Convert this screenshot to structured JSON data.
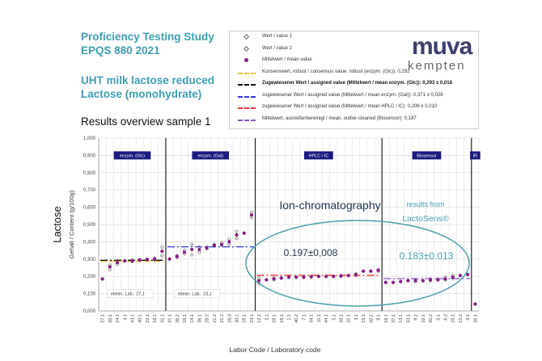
{
  "header": {
    "title_line1": "Proficiency Testing Study",
    "title_line2": "EPQS 880 2021",
    "title_line3": "UHT milk lactose reduced",
    "title_line4": "Lactose (monohydrate)",
    "subtitle": "Results overview sample 1"
  },
  "logo": {
    "top": "muva",
    "bottom": "kempten"
  },
  "legend": {
    "items": [
      {
        "label": "Wert / value 1",
        "color": "#666666",
        "marker": "open-diamond"
      },
      {
        "label": "Wert / value 2",
        "color": "#666666",
        "marker": "open-diamond"
      },
      {
        "label": "Mittelwert / mean value",
        "color": "#8b1a8b",
        "marker": "dot"
      },
      {
        "label": "Konsenswert, robust / consensus value, robust (enzym. (Glc)): 0,292",
        "color": "#f5c242",
        "style": "dash"
      },
      {
        "label": "Zugewiesener Wert / assigned value (Mittelwert / mean enzym. (Glc)): 0,293 ± 0,018",
        "color": "#111111",
        "style": "dashdot",
        "bold": true
      },
      {
        "label": "zugewiesener Wert / assigned value (Mittelwert / mean enzym. (Gal)): 0,371 ± 0,028",
        "color": "#3333ee",
        "style": "dashdot"
      },
      {
        "label": "zugewiesener Wert / assigned value (Mittelwert / mean HPLC / IC): 0,206 ± 0,010",
        "color": "#ee3333",
        "style": "dashdot"
      },
      {
        "label": "Mittelwert, ausreißerbereinigt / mean, outlier-cleaned (Biosensor): 0,187",
        "color": "#8a55c8",
        "style": "dashdot"
      }
    ]
  },
  "chart_data": {
    "type": "scatter",
    "xlabel": "Labor Code / Laboratory code",
    "ylabel": "Gehalt / Content (g/100g)",
    "ylabel_outer": "Lactose",
    "ylim": [
      0,
      1
    ],
    "yticks": [
      "0,000",
      "0,100",
      "0,200",
      "0,300",
      "0,400",
      "0,500",
      "0,600",
      "0,700",
      "0,800",
      "0,900",
      "1,000"
    ],
    "grid": true,
    "groups": [
      {
        "name": "enzym. (Glc)",
        "labs": [
          "27.1",
          "20.1",
          "24.1",
          "4.1",
          "43.1",
          "40.1",
          "22.1",
          "16.1",
          "31.1"
        ],
        "mean": [
          0.185,
          0.255,
          0.28,
          0.29,
          0.29,
          0.295,
          0.298,
          0.3,
          0.345
        ],
        "value1": [
          0.185,
          0.265,
          0.29,
          0.29,
          0.295,
          0.295,
          0.3,
          0.305,
          0.37
        ],
        "value2": [
          0.185,
          0.24,
          0.27,
          0.29,
          0.285,
          0.295,
          0.295,
          0.295,
          0.32
        ],
        "assigned": 0.293,
        "assigned_color": "#111111",
        "consensus": 0.292,
        "consensus_color": "#f5c242",
        "note": "elimin. Lab.: 27,1"
      },
      {
        "name": "enzym. (Gal)",
        "labs": [
          "41.1",
          "36.2",
          "26.1",
          "14.1",
          "36.1",
          "29.2",
          "21.2",
          "21.1",
          "26.3",
          "30.1",
          "29.1",
          "23.1"
        ],
        "mean": [
          0.3,
          0.315,
          0.34,
          0.355,
          0.355,
          0.365,
          0.38,
          0.385,
          0.4,
          0.44,
          0.45,
          0.555
        ],
        "value1": [
          0.3,
          0.32,
          0.35,
          0.385,
          0.37,
          0.37,
          0.385,
          0.395,
          0.415,
          0.46,
          0.45,
          0.57
        ],
        "value2": [
          0.3,
          0.31,
          0.33,
          0.325,
          0.34,
          0.36,
          0.375,
          0.38,
          0.385,
          0.42,
          0.45,
          0.54
        ],
        "assigned": 0.371,
        "assigned_color": "#3333ee",
        "note": "elimin. Lab.: 23,1"
      },
      {
        "name": "HPLC / IC",
        "labs": [
          "12.1",
          "2.1",
          "28.1",
          "18.1",
          "1.1",
          "40.2",
          "7.1",
          "34.1",
          "11.1",
          "44.1",
          "5.1",
          "39.1",
          "32.1",
          "3.1",
          "15.1",
          "42.1",
          "8.1"
        ],
        "mean": [
          0.175,
          0.18,
          0.185,
          0.19,
          0.195,
          0.195,
          0.195,
          0.198,
          0.2,
          0.2,
          0.2,
          0.203,
          0.205,
          0.21,
          0.23,
          0.23,
          0.235
        ],
        "value1": [
          0.19,
          0.18,
          0.19,
          0.19,
          0.195,
          0.195,
          0.195,
          0.2,
          0.2,
          0.2,
          0.2,
          0.205,
          0.205,
          0.215,
          0.23,
          0.23,
          0.24
        ],
        "value2": [
          0.16,
          0.18,
          0.18,
          0.19,
          0.195,
          0.195,
          0.195,
          0.196,
          0.2,
          0.2,
          0.2,
          0.2,
          0.205,
          0.205,
          0.23,
          0.23,
          0.23
        ],
        "assigned": 0.206,
        "assigned_color": "#ee3333"
      },
      {
        "name": "Biosensor",
        "labs": [
          "19.1",
          "37.1",
          "13.1",
          "33.1",
          "9.2",
          "10.1",
          "20.2",
          "6.1",
          "6.2",
          "25.1",
          "15.2",
          "9.1"
        ],
        "mean": [
          0.165,
          0.165,
          0.17,
          0.175,
          0.175,
          0.175,
          0.18,
          0.18,
          0.185,
          0.195,
          0.205,
          0.21
        ],
        "value1": [
          0.165,
          0.165,
          0.17,
          0.175,
          0.18,
          0.175,
          0.185,
          0.185,
          0.195,
          0.205,
          0.205,
          0.21
        ],
        "value2": [
          0.165,
          0.165,
          0.17,
          0.175,
          0.17,
          0.175,
          0.175,
          0.18,
          0.18,
          0.19,
          0.205,
          0.21
        ],
        "assigned": 0.187,
        "assigned_color": "#8a55c8"
      },
      {
        "name": "IR",
        "labs": [
          "38.1"
        ],
        "mean": [
          0.04
        ],
        "value1": [
          0.04
        ],
        "value2": [
          0.04
        ]
      }
    ],
    "annotations": {
      "ic_label": "Ion-chromatography",
      "ic_value": "0.197±0,008",
      "bio_label1": "results from",
      "bio_label2": "LactoSens®",
      "bio_value": "0.183±0.013",
      "ellipse_color": "#4a9fb0",
      "bio_color": "#4a9fb0",
      "ic_color": "#1f3550"
    }
  }
}
